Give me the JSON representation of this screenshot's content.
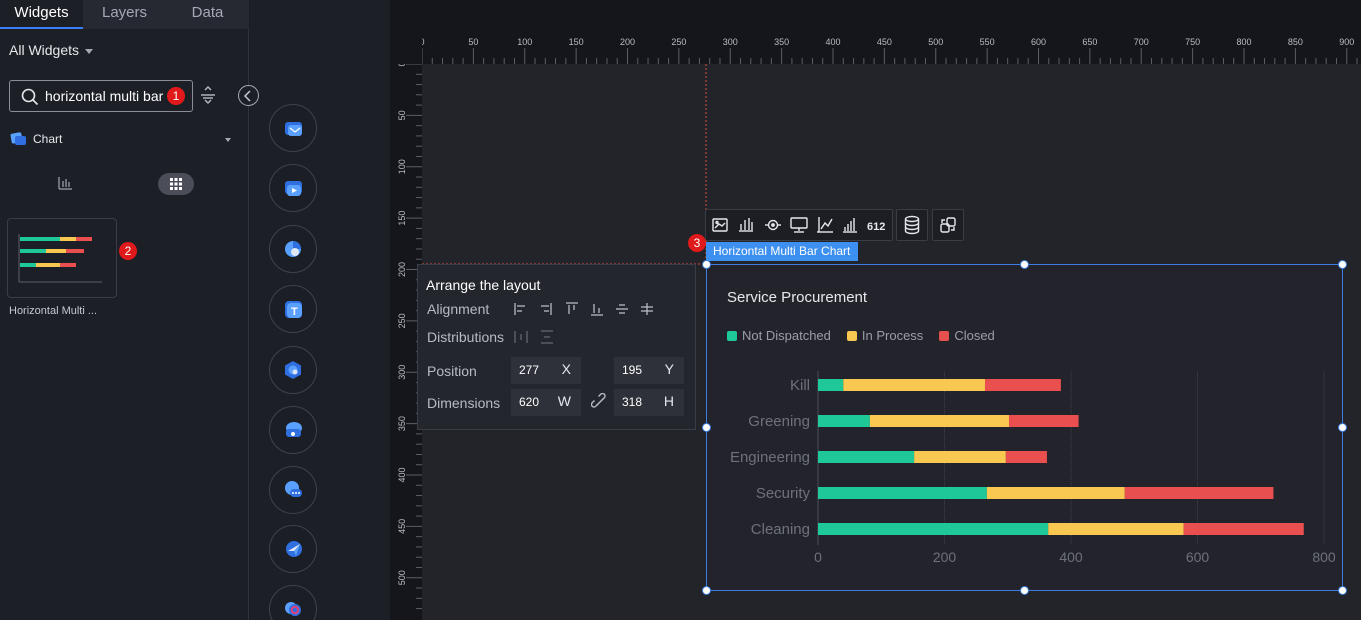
{
  "left_panel": {
    "tabs": [
      {
        "label": "Widgets",
        "active": true
      },
      {
        "label": "Layers",
        "active": false
      },
      {
        "label": "Data",
        "active": false
      }
    ],
    "all_widgets_label": "All Widgets",
    "search": {
      "value": "horizontal multi bar",
      "badge": "1"
    },
    "category": {
      "label": "Chart",
      "icon": "chart-category-icon"
    },
    "widget": {
      "label": "Horizontal Multi ...",
      "badge": "2"
    }
  },
  "icon_strip": [
    "mail-widget-icon",
    "video-widget-icon",
    "pie-widget-icon",
    "text-widget-icon",
    "settings-widget-icon",
    "location-widget-icon",
    "chat-widget-icon",
    "send-widget-icon",
    "ring-widget-icon"
  ],
  "ruler": {
    "top_ticks": [
      "0",
      "50",
      "100",
      "150",
      "200",
      "250",
      "300",
      "350",
      "400",
      "450",
      "500",
      "550",
      "600",
      "650",
      "700",
      "750",
      "800",
      "850",
      "900"
    ],
    "left_ticks": [
      "0",
      "50",
      "100",
      "150",
      "200",
      "250",
      "300",
      "350",
      "400",
      "450",
      "500"
    ]
  },
  "arrange": {
    "title": "Arrange the layout",
    "alignment_label": "Alignment",
    "distributions_label": "Distributions",
    "position_label": "Position",
    "dimensions_label": "Dimensions",
    "x": "277",
    "x_unit": "X",
    "y": "195",
    "y_unit": "Y",
    "w": "620",
    "w_unit": "W",
    "h": "318",
    "h_unit": "H"
  },
  "widget_tag": {
    "label": "Horizontal Multi Bar Chart",
    "badge": "3"
  },
  "toolbar_icons": [
    "image-icon",
    "bar-chart-icon",
    "target-icon",
    "monitor-icon",
    "axis-icon",
    "column-chart-icon",
    "number-612-icon",
    "database-icon",
    "interaction-icon"
  ],
  "toolbar_number": "612",
  "colors": {
    "not_dispatched": "#1ec997",
    "in_process": "#f8c851",
    "closed": "#ea4f4f",
    "accent": "#3d8ff0",
    "badge": "#e01a1a"
  },
  "chart_data": {
    "type": "bar",
    "orientation": "horizontal",
    "stacked": true,
    "title": "Service Procurement",
    "categories": [
      "Kill",
      "Greening",
      "Engineering",
      "Security",
      "Cleaning"
    ],
    "series": [
      {
        "name": "Not Dispatched",
        "values": [
          40,
          82,
          152,
          267,
          364
        ]
      },
      {
        "name": "In Process",
        "values": [
          224,
          220,
          145,
          218,
          214
        ]
      },
      {
        "name": "Closed",
        "values": [
          120,
          110,
          65,
          235,
          190
        ]
      }
    ],
    "x_ticks": [
      "0",
      "200",
      "400",
      "600",
      "800"
    ],
    "xlim": [
      0,
      800
    ],
    "grid": true,
    "legend": "top-left"
  }
}
